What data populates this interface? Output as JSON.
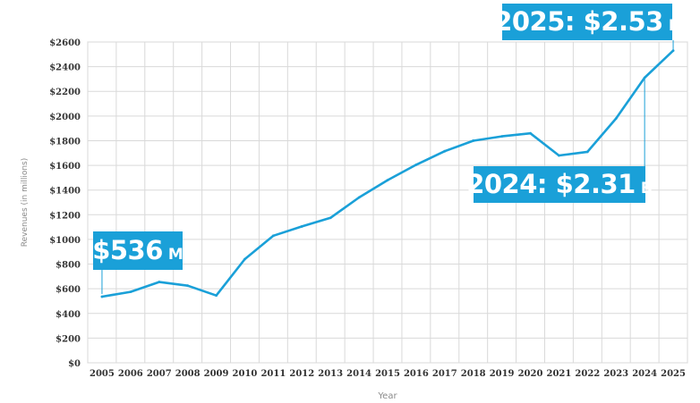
{
  "chart_data": {
    "type": "line",
    "title": "",
    "xlabel": "Year",
    "ylabel": "Revenues (in millions)",
    "x": [
      "2005",
      "2006",
      "2007",
      "2008",
      "2009",
      "2010",
      "2011",
      "2012",
      "2013",
      "2014",
      "2015",
      "2016",
      "2017",
      "2018",
      "2019",
      "2020",
      "2021",
      "2022",
      "2023",
      "2024",
      "2025"
    ],
    "series": [
      {
        "values": [
          536,
          575,
          655,
          625,
          545,
          840,
          1030,
          1105,
          1175,
          1340,
          1480,
          1605,
          1715,
          1800,
          1835,
          1860,
          1680,
          1710,
          1980,
          2310,
          2530
        ]
      }
    ],
    "ylim": [
      0,
      2600
    ],
    "y_ticks": [
      "$0",
      "$200",
      "$400",
      "$600",
      "$800",
      "$1000",
      "$1200",
      "$1400",
      "$1600",
      "$1800",
      "$2000",
      "$2200",
      "$2400",
      "$2600"
    ],
    "grid": true,
    "legend": "none",
    "line_color": "#1aa0d8",
    "annotations": [
      {
        "id": "2005",
        "value": "$536",
        "unit": "M"
      },
      {
        "id": "2024",
        "value": "2024: $2.31",
        "unit": "B"
      },
      {
        "id": "2025",
        "value": "2025: $2.53",
        "unit": "B"
      }
    ]
  }
}
